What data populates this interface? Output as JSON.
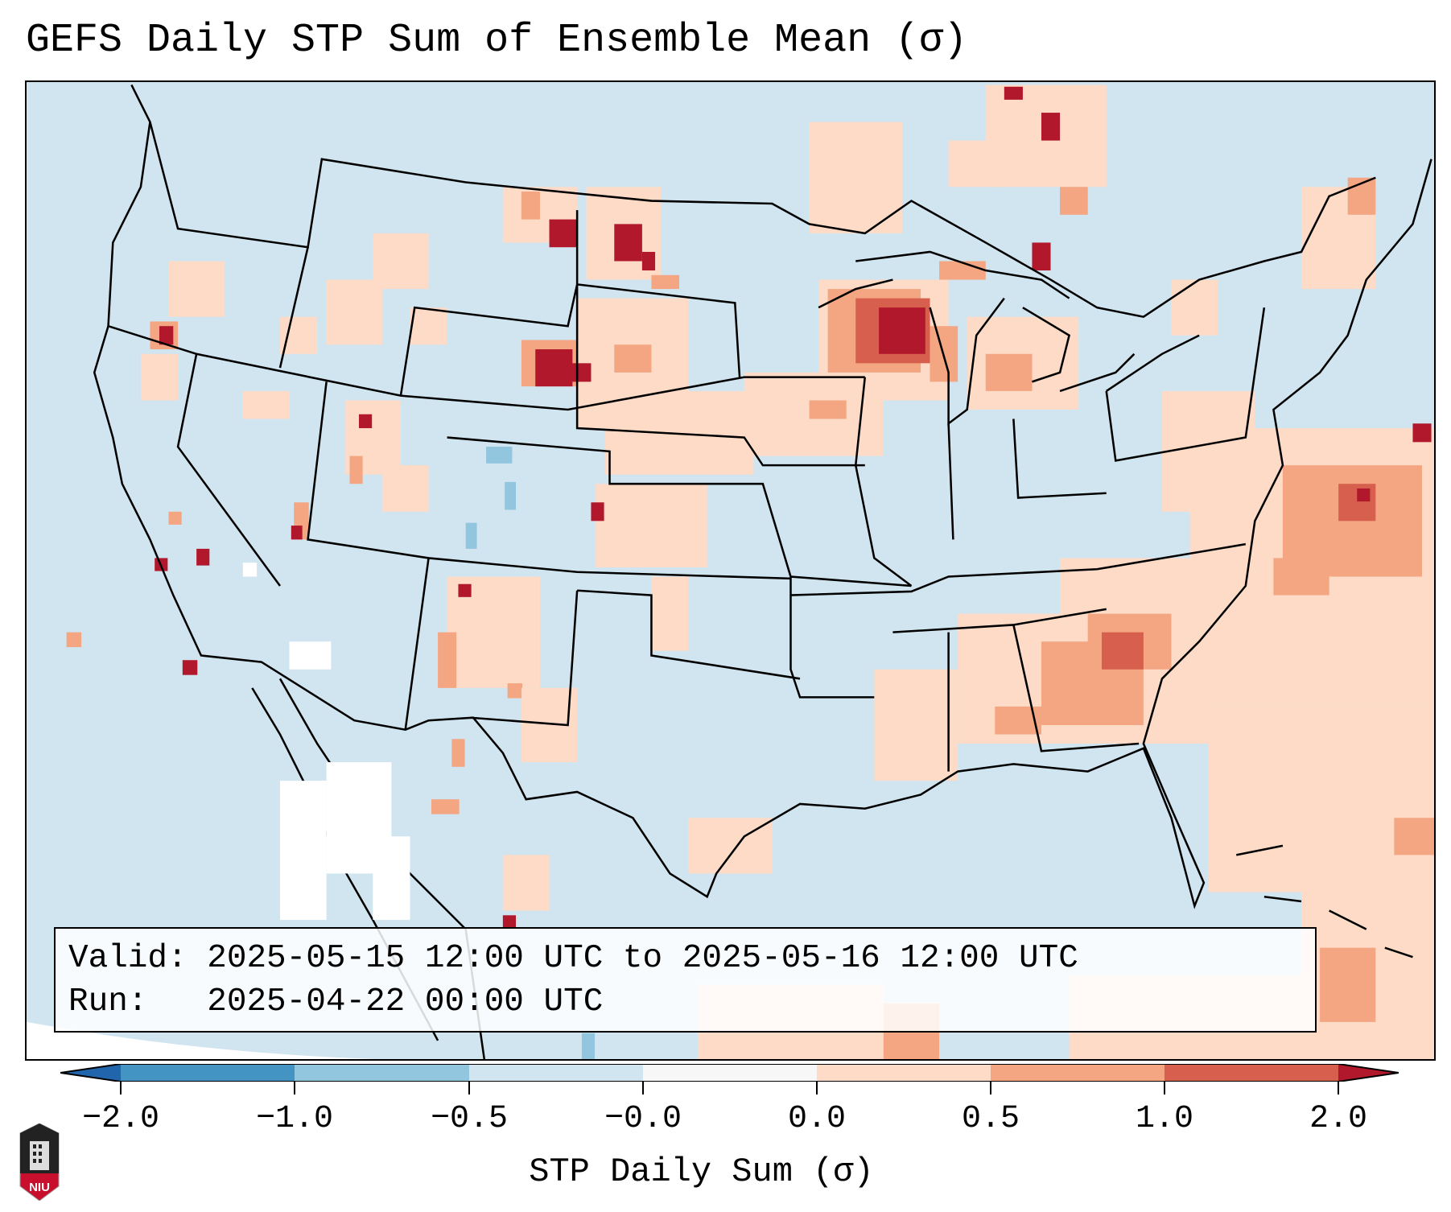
{
  "title": "GEFS Daily STP Sum of Ensemble Mean (σ)",
  "info_box": {
    "valid_label": "Valid:",
    "valid_value": "2025-05-15 12:00 UTC to 2025-05-16 12:00 UTC",
    "run_label": "Run:  ",
    "run_value": "2025-04-22 00:00 UTC"
  },
  "colorbar": {
    "label": "STP Daily Sum (σ)",
    "ticks": [
      "−2.0",
      "−1.0",
      "−0.5",
      "−0.0",
      "0.0",
      "0.5",
      "1.0",
      "2.0"
    ],
    "levels": [
      -2.0,
      -1.0,
      -0.5,
      -0.0,
      0.0,
      0.5,
      1.0,
      2.0
    ],
    "colors": [
      "#4393c3",
      "#92c5de",
      "#d1e5f0",
      "#f7f7f7",
      "#fddbc7",
      "#f4a582",
      "#d6604d"
    ],
    "under_color": "#2166ac",
    "over_color": "#b2182b"
  },
  "logo": {
    "text": "NIU"
  }
}
